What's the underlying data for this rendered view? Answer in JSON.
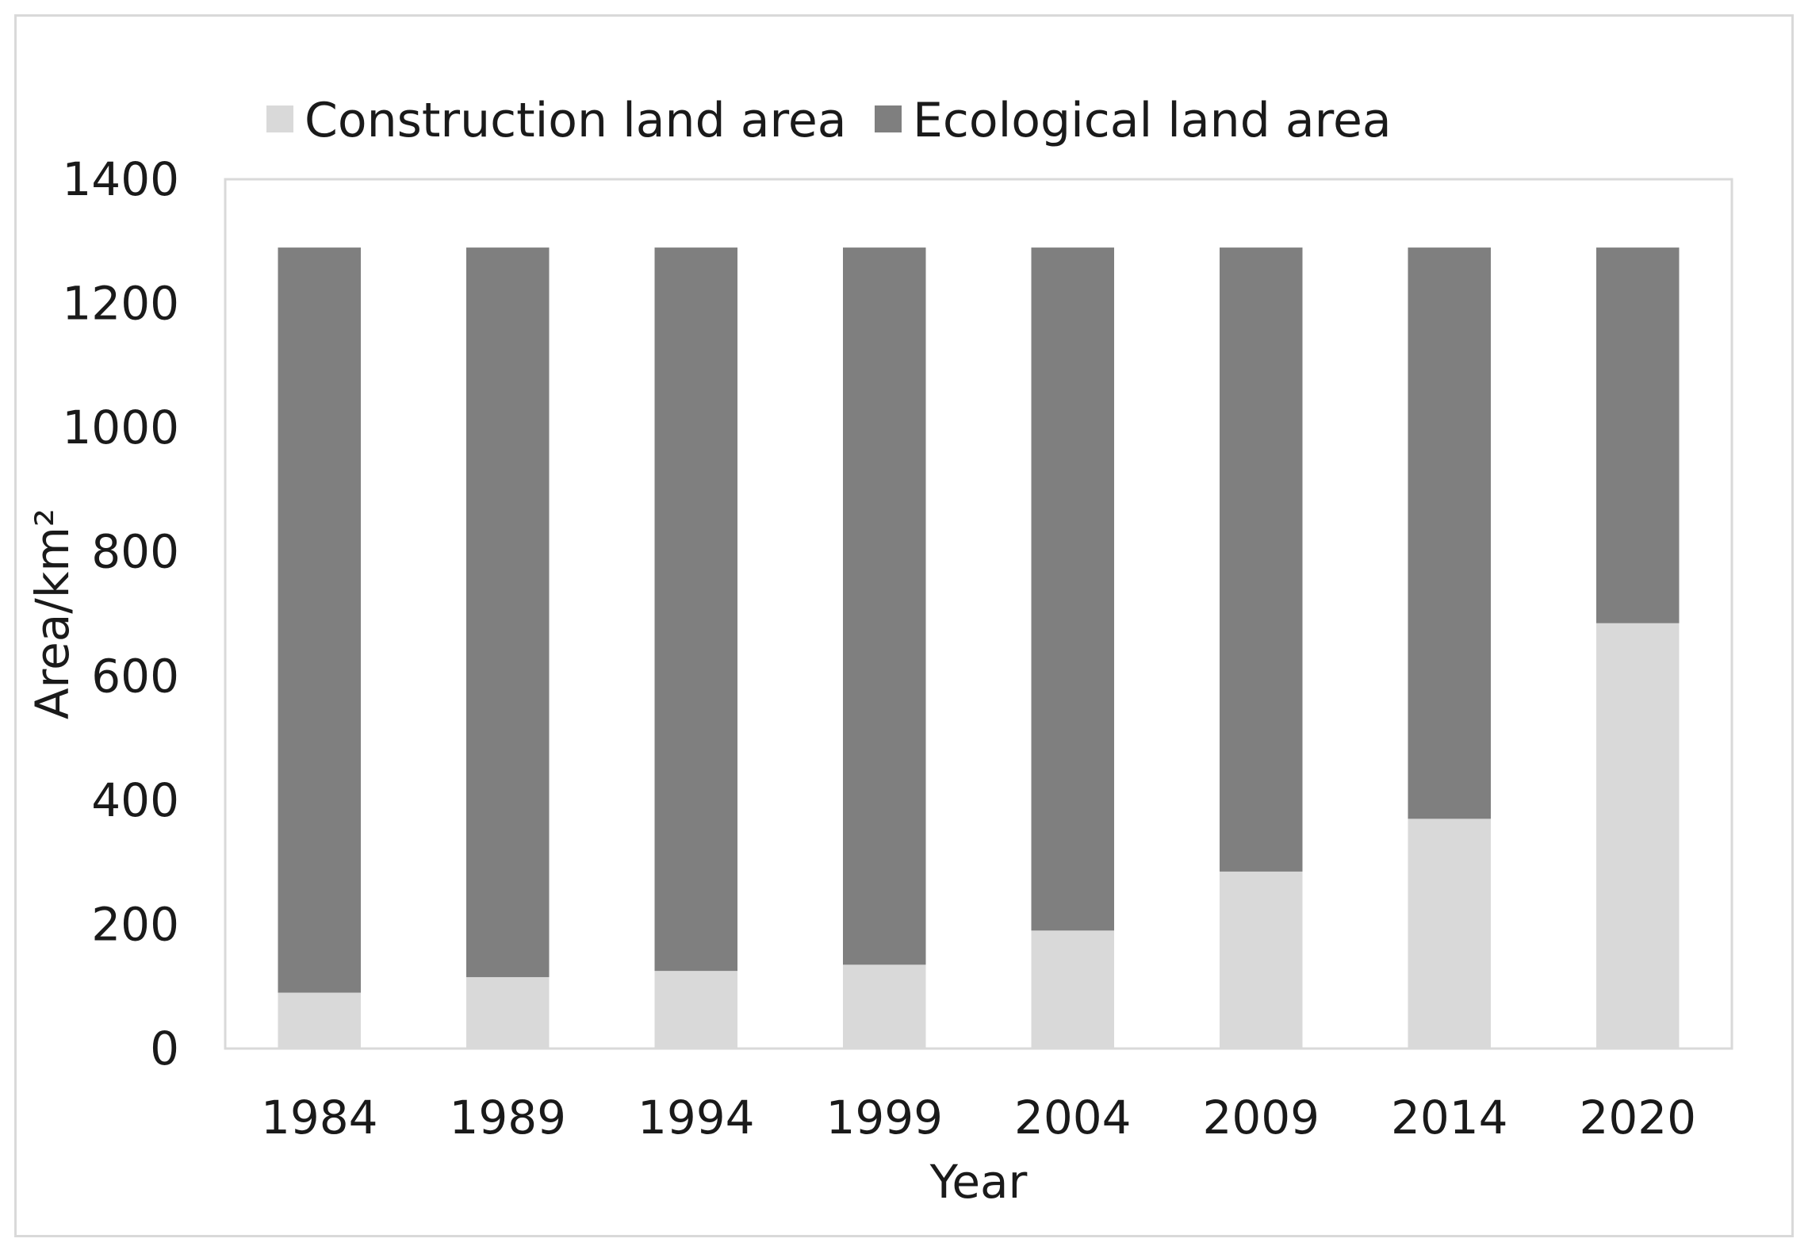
{
  "chart_data": {
    "type": "bar",
    "stacked": true,
    "categories": [
      "1984",
      "1989",
      "1994",
      "1999",
      "2004",
      "2009",
      "2014",
      "2020"
    ],
    "series": [
      {
        "name": "Construction land area",
        "color": "#d9d9d9",
        "values": [
          90,
          115,
          125,
          135,
          190,
          285,
          370,
          685
        ]
      },
      {
        "name": "Ecological land area",
        "color": "#7f7f7f",
        "values": [
          1200,
          1175,
          1165,
          1155,
          1100,
          1005,
          920,
          605
        ]
      }
    ],
    "title": "",
    "xlabel": "Year",
    "ylabel": "Area/km²",
    "ylim": [
      0,
      1400
    ],
    "yticks": [
      "0",
      "200",
      "400",
      "600",
      "800",
      "1000",
      "1200",
      "1400"
    ],
    "grid": false,
    "legend_position": "top"
  }
}
